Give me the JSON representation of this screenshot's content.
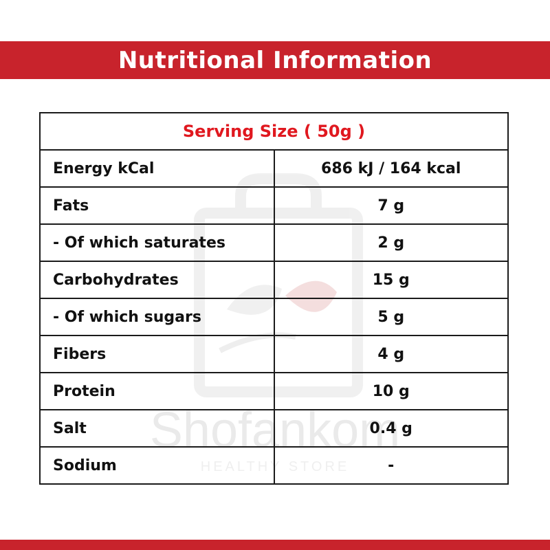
{
  "header": {
    "title": "Nutritional Information"
  },
  "serving": {
    "label": "Serving Size ( 50g )"
  },
  "rows": [
    {
      "label": "Energy kCal",
      "value": "686 kJ / 164 kcal"
    },
    {
      "label": "Fats",
      "value": "7 g"
    },
    {
      "label": "- Of which saturates",
      "value": "2 g"
    },
    {
      "label": "Carbohydrates",
      "value": "15 g"
    },
    {
      "label": "- Of which sugars",
      "value": "5 g"
    },
    {
      "label": "Fibers",
      "value": "4 g"
    },
    {
      "label": "Protein",
      "value": "10 g"
    },
    {
      "label": "Salt",
      "value": "0.4 g"
    },
    {
      "label": "Sodium",
      "value": "-"
    }
  ],
  "watermark": {
    "name": "Shofankom",
    "subtitle": "HEALTHY STORE"
  },
  "colors": {
    "brand_red": "#c8232c",
    "serving_red": "#e0181f",
    "border": "#1a1a1a"
  }
}
